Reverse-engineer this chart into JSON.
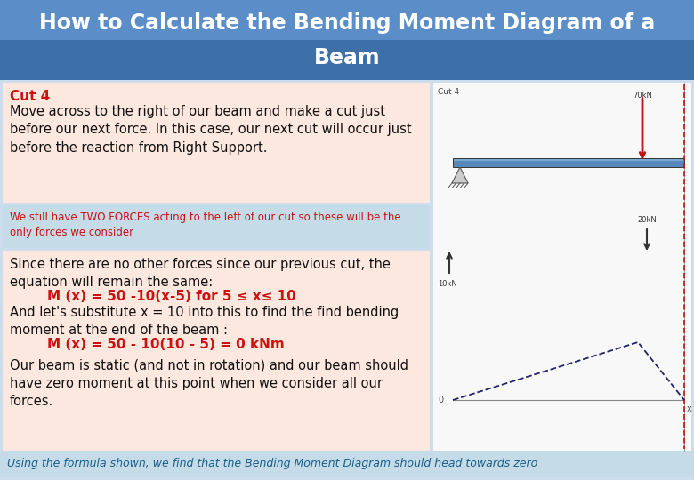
{
  "title_line1": "How to Calculate the Bending Moment Diagram of a",
  "title_line2": "Beam",
  "title_bg_top": "#5b8ec9",
  "title_bg_bottom": "#3d6fa8",
  "title_text_color": "#ffffff",
  "title_font_size": 17,
  "main_bg": "#ccdded",
  "section1_bg": "#fce8df",
  "section1_label": "Cut 4",
  "section1_label_color": "#cc1111",
  "section1_text": "Move across to the right of our beam and make a cut just\nbefore our next force. In this case, our next cut will occur just\nbefore the reaction from Right Support.",
  "section1_text_color": "#111111",
  "section1_font_size": 10.5,
  "section2_bg": "#c5dbe8",
  "section2_text": "We still have TWO FORCES acting to the left of our cut so these will be the\nonly forces we consider",
  "section2_text_color": "#cc1111",
  "section2_font_size": 8.5,
  "section3_bg": "#fce8df",
  "section3_text1": "Since there are no other forces since our previous cut, the\nequation will remain the same:",
  "section3_eq1": "        M (x) = 50 -10(x-5) for 5 ≤ x≤ 10",
  "section3_text2": "And let's substitute x = 10 into this to find the find bending\nmoment at the end of the beam :",
  "section3_eq2": "        M (x) = 50 - 10(10 - 5) = 0 kNm",
  "section3_text3": "\nOur beam is static (and not in rotation) and our beam should\nhave zero moment at this point when we consider all our\nforces.",
  "section3_text_color": "#111111",
  "section3_eq_color": "#cc1111",
  "section3_font_size": 10.5,
  "section3_eq_font_size": 11,
  "section4_bg": "#c5dbe8",
  "section4_text": "Using the formula shown, we find that the Bending Moment Diagram should head towards zero",
  "section4_text_color": "#1a5f88",
  "section4_font_size": 9,
  "diag_bg": "#f8f8f8",
  "diag_cut_label": "Cut 4",
  "diag_force_label": "70kN",
  "diag_force2_label": "20kN",
  "diag_react_label": "10kN",
  "diag_zero_label": "0",
  "diag_x_label": "x"
}
